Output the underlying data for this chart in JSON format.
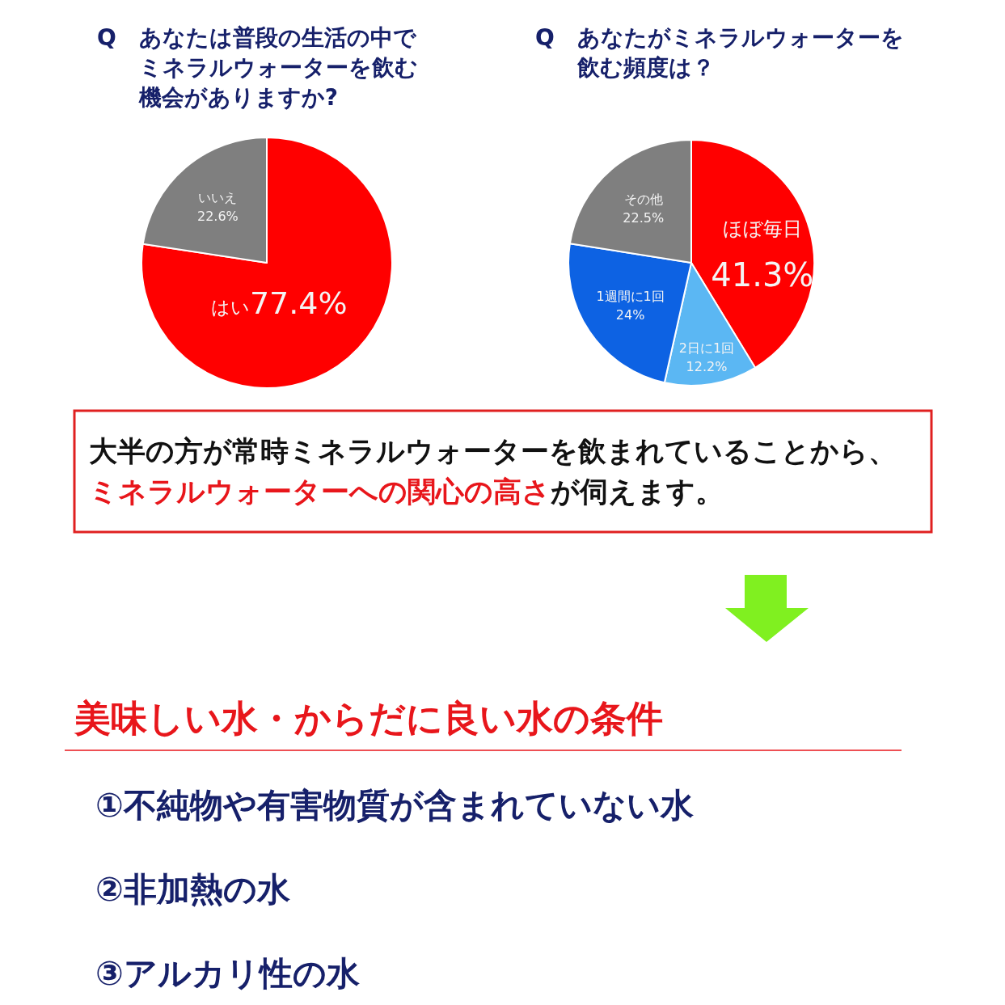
{
  "chart_data": [
    {
      "type": "pie",
      "title": "Q　あなたは普段の生活の中でミネラルウォーターを飲む機会がありますか?",
      "categories": [
        "はい",
        "いいえ"
      ],
      "values": [
        77.4,
        22.6
      ],
      "colors": [
        "#ff0000",
        "#7f7f7f"
      ],
      "value_labels": [
        "77.4%",
        "22.6%"
      ]
    },
    {
      "type": "pie",
      "title": "Q　あなたがミネラルウォーターを飲む頻度は？",
      "categories": [
        "ほぼ毎日",
        "2日に1回",
        "1週間に1回",
        "その他"
      ],
      "values": [
        41.3,
        12.2,
        24,
        22.5
      ],
      "colors": [
        "#ff0000",
        "#5bb7f3",
        "#0d62e3",
        "#7f7f7f"
      ],
      "value_labels": [
        "41.3%",
        "12.2%",
        "24%",
        "22.5%"
      ]
    },
    {
      "type": "other",
      "annotations": [
        "大半の方が常時ミネラルウォーターを飲まれていることから、",
        "ミネラルウォーターへの関心の高さ",
        "が伺えます。"
      ]
    },
    {
      "type": "other",
      "title": "美味しい水・からだに良い水の条件",
      "annotations": [
        "①不純物や有害物質が含まれていない水",
        "②非加熱の水",
        "③アルカリ性の水"
      ]
    }
  ]
}
